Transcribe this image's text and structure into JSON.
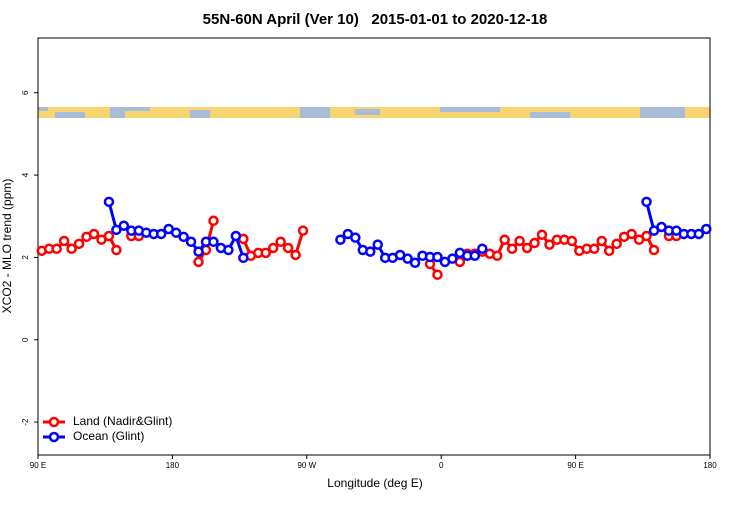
{
  "chart_data": {
    "type": "line",
    "title": "55N-60N April (Ver 10)   2015-01-01 to 2020-12-18",
    "x_label": "Longitude (deg E)",
    "y_label": "XCO2 - MLO trend (ppm)",
    "xlim": [
      90,
      540
    ],
    "ylim": [
      -2.8,
      7.33
    ],
    "xticks": [
      {
        "value": 90,
        "label": "90 E"
      },
      {
        "value": 180,
        "label": "180"
      },
      {
        "value": 270,
        "label": "90 W"
      },
      {
        "value": 360,
        "label": "0"
      },
      {
        "value": 450,
        "label": "90 E"
      },
      {
        "value": 540,
        "label": "180"
      }
    ],
    "yticks": [
      -2,
      0,
      2,
      4,
      6
    ],
    "legend": "lower left",
    "x": [
      92.5,
      97.5,
      102.5,
      107.5,
      112.5,
      117.5,
      122.5,
      127.5,
      132.5,
      137.5,
      142.5,
      147.5,
      152.5,
      157.5,
      162.5,
      167.5,
      172.5,
      177.5,
      182.5,
      187.5,
      192.5,
      197.5,
      202.5,
      207.5,
      212.5,
      217.5,
      222.5,
      227.5,
      232.5,
      237.5,
      242.5,
      247.5,
      252.5,
      257.5,
      262.5,
      267.5,
      272.5,
      277.5,
      282.5,
      287.5,
      292.5,
      297.5,
      302.5,
      307.5,
      312.5,
      317.5,
      322.5,
      327.5,
      332.5,
      337.5,
      342.5,
      347.5,
      352.5,
      357.5,
      362.5,
      367.5,
      372.5,
      377.5,
      382.5,
      387.5,
      392.5,
      397.5,
      402.5,
      407.5,
      412.5,
      417.5,
      422.5,
      427.5,
      432.5,
      437.5,
      442.5,
      447.5,
      452.5,
      457.5,
      462.5,
      467.5,
      472.5,
      477.5,
      482.5,
      487.5,
      492.5,
      497.5,
      502.5,
      507.5,
      512.5,
      517.5,
      522.5,
      527.5,
      532.5,
      537.5
    ],
    "series": [
      {
        "name": "Land (Nadir&Glint)",
        "color": "#ff0000",
        "values": [
          2.16,
          2.21,
          2.21,
          2.4,
          2.21,
          2.33,
          2.5,
          2.57,
          2.43,
          2.52,
          2.18,
          null,
          2.52,
          2.52,
          null,
          null,
          null,
          null,
          null,
          null,
          null,
          1.89,
          2.18,
          2.89,
          null,
          null,
          null,
          2.45,
          2.04,
          2.11,
          2.11,
          2.23,
          2.38,
          2.23,
          2.06,
          2.65,
          null,
          null,
          null,
          null,
          null,
          null,
          null,
          null,
          null,
          null,
          null,
          null,
          null,
          null,
          null,
          null,
          1.84,
          1.58,
          null,
          null,
          1.89,
          2.09,
          2.09,
          2.14,
          2.09,
          2.04,
          2.43,
          2.21,
          2.4,
          2.23,
          2.35,
          2.55,
          2.31,
          2.43,
          2.43,
          2.4,
          2.16,
          2.21,
          2.21,
          2.4,
          2.16,
          2.33,
          2.5,
          2.57,
          2.43,
          2.52,
          2.18,
          null,
          2.52,
          2.52,
          null,
          null,
          null,
          null
        ]
      },
      {
        "name": "Ocean (Glint)",
        "color": "#0000ff",
        "values": [
          null,
          null,
          null,
          null,
          null,
          null,
          null,
          null,
          null,
          3.35,
          2.67,
          2.77,
          2.65,
          2.65,
          2.6,
          2.57,
          2.57,
          2.69,
          2.6,
          2.5,
          2.38,
          2.14,
          2.38,
          2.38,
          2.23,
          2.18,
          2.52,
          1.99,
          null,
          null,
          null,
          null,
          null,
          null,
          null,
          null,
          null,
          null,
          null,
          null,
          2.43,
          2.57,
          2.48,
          2.18,
          2.14,
          2.31,
          1.99,
          1.99,
          2.06,
          1.97,
          1.87,
          2.04,
          2.01,
          2.01,
          1.89,
          1.97,
          2.11,
          2.04,
          2.04,
          2.21,
          null,
          null,
          null,
          null,
          null,
          null,
          null,
          null,
          null,
          null,
          null,
          null,
          null,
          null,
          null,
          null,
          null,
          null,
          null,
          null,
          null,
          3.35,
          2.65,
          2.74,
          2.65,
          2.65,
          2.57,
          2.57,
          2.57,
          2.69
        ]
      }
    ]
  }
}
